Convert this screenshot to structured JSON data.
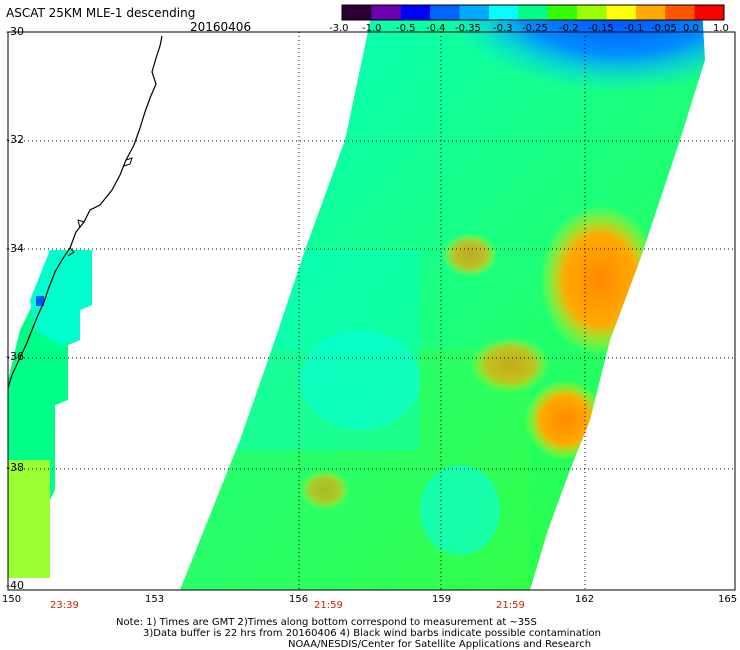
{
  "header": {
    "title": "ASCAT 25KM MLE-1 descending",
    "date": "20160406"
  },
  "colorbar": {
    "labels": [
      "-3.0",
      "-1.0",
      "-0.5",
      "-0.4",
      "-0.35",
      "-0.3",
      "-0.25",
      "-0.2",
      "-0.15",
      "-0.1",
      "-0.05",
      "0.0",
      "1.0"
    ],
    "colors": [
      "#2b0033",
      "#6a00b0",
      "#0000ff",
      "#0066ff",
      "#00aaff",
      "#00ffff",
      "#00ff88",
      "#33ff00",
      "#99ff00",
      "#ffff00",
      "#ffaa00",
      "#ff5500",
      "#ff0000"
    ]
  },
  "axes": {
    "lat_labels": [
      "-30",
      "-32",
      "-34",
      "-36",
      "-38",
      "-40"
    ],
    "lon_labels": [
      "150",
      "153",
      "156",
      "159",
      "162",
      "165"
    ]
  },
  "times": [
    "23:39",
    "21:59",
    "21:59"
  ],
  "note": {
    "line1": "Note: 1) Times are GMT 2)Times along bottom correspond to measurement at ~35S",
    "line2": "3)Data buffer is 22 hrs from 20160406 4) Black wind barbs indicate possible contamination",
    "line3": "NOAA/NESDIS/Center for Satellite Applications and Research"
  }
}
